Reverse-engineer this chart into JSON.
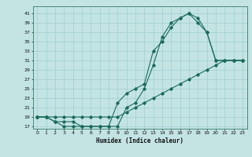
{
  "xlabel": "Humidex (Indice chaleur)",
  "ylabel": "",
  "bg_color": "#c4e4e4",
  "grid_color": "#9ecece",
  "line_color": "#1a6b5a",
  "xlim": [
    -0.5,
    23.5
  ],
  "ylim": [
    16.5,
    42.5
  ],
  "yticks": [
    17,
    19,
    21,
    23,
    25,
    27,
    29,
    31,
    33,
    35,
    37,
    39,
    41
  ],
  "xticks": [
    0,
    1,
    2,
    3,
    4,
    5,
    6,
    7,
    8,
    9,
    10,
    11,
    12,
    13,
    14,
    15,
    16,
    17,
    18,
    19,
    20,
    21,
    22,
    23
  ],
  "line1_x": [
    0,
    1,
    2,
    3,
    4,
    5,
    6,
    7,
    8,
    9,
    10,
    11,
    12,
    13,
    14,
    15,
    16,
    17,
    18,
    19,
    20,
    21,
    22,
    23
  ],
  "line1_y": [
    19,
    19,
    19,
    19,
    19,
    19,
    19,
    19,
    19,
    19,
    20,
    21,
    22,
    23,
    24,
    25,
    26,
    27,
    28,
    29,
    30,
    31,
    31,
    31
  ],
  "line2_x": [
    0,
    1,
    2,
    3,
    4,
    5,
    6,
    7,
    8,
    9,
    10,
    11,
    12,
    13,
    14,
    15,
    16,
    17,
    18,
    19,
    20,
    21,
    22,
    23
  ],
  "line2_y": [
    19,
    19,
    18,
    17,
    17,
    17,
    17,
    17,
    17,
    17,
    21,
    22,
    25,
    30,
    36,
    39,
    40,
    41,
    39,
    37,
    31,
    31,
    31,
    31
  ],
  "line3_x": [
    0,
    1,
    2,
    3,
    4,
    5,
    6,
    7,
    8,
    9,
    10,
    11,
    12,
    13,
    14,
    15,
    16,
    17,
    18,
    19,
    20,
    21,
    22,
    23
  ],
  "line3_y": [
    19,
    19,
    18,
    18,
    18,
    17,
    17,
    17,
    17,
    22,
    24,
    25,
    26,
    33,
    35,
    38,
    40,
    41,
    40,
    37,
    31,
    31,
    31,
    31
  ],
  "figsize": [
    3.2,
    2.0
  ],
  "dpi": 100
}
